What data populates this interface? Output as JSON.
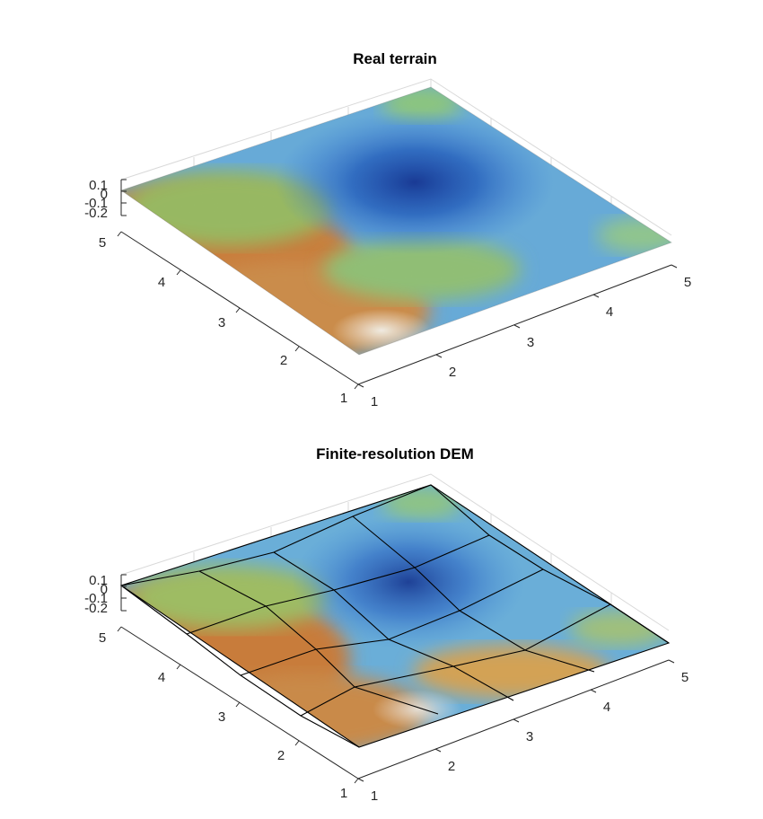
{
  "chart_data": [
    {
      "type": "surface",
      "title": "Real terrain",
      "xlabel": "",
      "ylabel": "",
      "zlabel": "",
      "x_ticks": [
        "1",
        "2",
        "3",
        "4",
        "5"
      ],
      "y_ticks": [
        "1",
        "2",
        "3",
        "4",
        "5"
      ],
      "z_ticks": [
        "0.1",
        "0",
        "-0.1",
        "-0.2"
      ],
      "xlim": [
        1,
        5
      ],
      "ylim": [
        1,
        5
      ],
      "zlim": [
        -0.2,
        0.1
      ],
      "grid": true,
      "colormap": "turbo-like (blue low, green mid, orange/white high)",
      "surface_texture": "fine-scale roughness",
      "x": [
        1,
        2,
        3,
        4,
        5
      ],
      "y": [
        1,
        2,
        3,
        4,
        5
      ],
      "z_approx": [
        [
          0.1,
          0.05,
          0.0,
          -0.03,
          -0.03
        ],
        [
          0.07,
          0.02,
          -0.05,
          -0.05,
          -0.05
        ],
        [
          0.06,
          -0.05,
          -0.12,
          -0.1,
          -0.05
        ],
        [
          0.04,
          -0.05,
          -0.15,
          -0.17,
          -0.08
        ],
        [
          0.05,
          0.0,
          -0.07,
          -0.05,
          0.0
        ]
      ]
    },
    {
      "type": "surface",
      "title": "Finite-resolution DEM",
      "xlabel": "",
      "ylabel": "",
      "zlabel": "",
      "x_ticks": [
        "1",
        "2",
        "3",
        "4",
        "5"
      ],
      "y_ticks": [
        "1",
        "2",
        "3",
        "4",
        "5"
      ],
      "z_ticks": [
        "0.1",
        "0",
        "-0.1",
        "-0.2"
      ],
      "xlim": [
        1,
        5
      ],
      "ylim": [
        1,
        5
      ],
      "zlim": [
        -0.2,
        0.1
      ],
      "grid": true,
      "colormap": "turbo-like (blue low, green mid, orange/white high)",
      "mesh": "5x5 coarse grid with black edges",
      "x": [
        1,
        2,
        3,
        4,
        5
      ],
      "y": [
        1,
        2,
        3,
        4,
        5
      ],
      "z_approx": [
        [
          0.1,
          0.05,
          0.0,
          -0.03,
          -0.03
        ],
        [
          0.07,
          0.02,
          -0.05,
          -0.05,
          -0.05
        ],
        [
          0.06,
          -0.05,
          -0.12,
          -0.1,
          -0.05
        ],
        [
          0.04,
          -0.05,
          -0.15,
          -0.17,
          -0.08
        ],
        [
          0.05,
          0.0,
          -0.07,
          -0.05,
          0.0
        ]
      ]
    }
  ]
}
